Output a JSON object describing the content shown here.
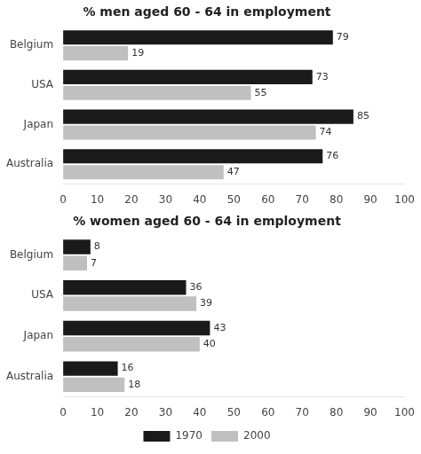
{
  "chart_data": [
    {
      "type": "bar",
      "orientation": "horizontal",
      "title": "% men aged 60 - 64 in employment",
      "categories": [
        "Australia",
        "Japan",
        "USA",
        "Belgium"
      ],
      "series": [
        {
          "name": "1970",
          "color": "#1a1a1a",
          "values": [
            76,
            85,
            73,
            79
          ]
        },
        {
          "name": "2000",
          "color": "#c0c0c0",
          "values": [
            47,
            74,
            55,
            19
          ]
        }
      ],
      "xlim": [
        0,
        100
      ],
      "xticks": [
        0,
        10,
        20,
        30,
        40,
        50,
        60,
        70,
        80,
        90,
        100
      ],
      "grid": false,
      "data_labels": true
    },
    {
      "type": "bar",
      "orientation": "horizontal",
      "title": "% women aged 60 - 64 in employment",
      "categories": [
        "Australia",
        "Japan",
        "USA",
        "Belgium"
      ],
      "series": [
        {
          "name": "1970",
          "color": "#1a1a1a",
          "values": [
            16,
            43,
            36,
            8
          ]
        },
        {
          "name": "2000",
          "color": "#c0c0c0",
          "values": [
            18,
            40,
            39,
            7
          ]
        }
      ],
      "xlim": [
        0,
        100
      ],
      "xticks": [
        0,
        10,
        20,
        30,
        40,
        50,
        60,
        70,
        80,
        90,
        100
      ],
      "grid": false,
      "data_labels": true,
      "legend": "bottom"
    }
  ]
}
